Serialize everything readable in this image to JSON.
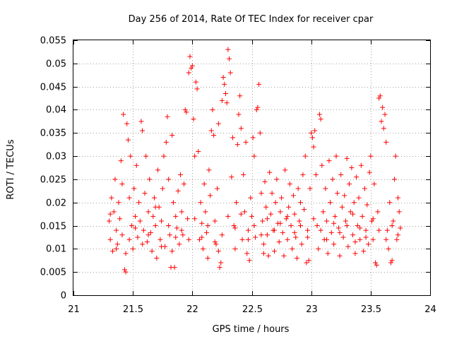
{
  "chart_data": {
    "type": "scatter",
    "title": "Day 256 of 2014, Rate Of TEC Index for receiver cpar",
    "xlabel": "GPS time / hours",
    "ylabel": "ROTI / TECUs",
    "xlim": [
      21,
      24
    ],
    "ylim": [
      0,
      0.055
    ],
    "grid": true,
    "marker": "plus",
    "color": "#ff0000",
    "x_ticks": [
      {
        "value": 21,
        "label": "21"
      },
      {
        "value": 21.5,
        "label": "21.5"
      },
      {
        "value": 22,
        "label": "22"
      },
      {
        "value": 22.5,
        "label": "22.5"
      },
      {
        "value": 23,
        "label": "23"
      },
      {
        "value": 23.5,
        "label": "23.5"
      },
      {
        "value": 24,
        "label": "24"
      }
    ],
    "y_ticks": [
      {
        "value": 0,
        "label": "0"
      },
      {
        "value": 0.005,
        "label": "0.005"
      },
      {
        "value": 0.01,
        "label": "0.01"
      },
      {
        "value": 0.015,
        "label": "0.015"
      },
      {
        "value": 0.02,
        "label": "0.02"
      },
      {
        "value": 0.025,
        "label": "0.025"
      },
      {
        "value": 0.03,
        "label": "0.03"
      },
      {
        "value": 0.035,
        "label": "0.035"
      },
      {
        "value": 0.04,
        "label": "0.04"
      },
      {
        "value": 0.045,
        "label": "0.045"
      },
      {
        "value": 0.05,
        "label": "0.05"
      },
      {
        "value": 0.055,
        "label": "0.055"
      }
    ],
    "points": [
      [
        21.3,
        0.016
      ],
      [
        21.31,
        0.012
      ],
      [
        21.32,
        0.021
      ],
      [
        21.33,
        0.0095
      ],
      [
        21.34,
        0.018
      ],
      [
        21.35,
        0.025
      ],
      [
        21.36,
        0.014
      ],
      [
        21.37,
        0.011
      ],
      [
        21.38,
        0.02
      ],
      [
        21.39,
        0.0165
      ],
      [
        21.4,
        0.029
      ],
      [
        21.41,
        0.013
      ],
      [
        21.42,
        0.039
      ],
      [
        21.43,
        0.0055
      ],
      [
        21.44,
        0.005
      ],
      [
        21.45,
        0.037
      ],
      [
        21.46,
        0.0335
      ],
      [
        21.47,
        0.021
      ],
      [
        21.48,
        0.03
      ],
      [
        21.49,
        0.015
      ],
      [
        21.5,
        0.01
      ],
      [
        21.51,
        0.023
      ],
      [
        21.52,
        0.017
      ],
      [
        21.53,
        0.028
      ],
      [
        21.54,
        0.0125
      ],
      [
        21.55,
        0.02
      ],
      [
        21.56,
        0.016
      ],
      [
        21.57,
        0.0375
      ],
      [
        21.58,
        0.0355
      ],
      [
        21.59,
        0.014
      ],
      [
        21.6,
        0.022
      ],
      [
        21.61,
        0.03
      ],
      [
        21.62,
        0.0115
      ],
      [
        21.63,
        0.018
      ],
      [
        21.64,
        0.025
      ],
      [
        21.65,
        0.0135
      ],
      [
        21.66,
        0.0095
      ],
      [
        21.67,
        0.017
      ],
      [
        21.68,
        0.021
      ],
      [
        21.69,
        0.015
      ],
      [
        21.7,
        0.008
      ],
      [
        21.71,
        0.027
      ],
      [
        21.72,
        0.019
      ],
      [
        21.73,
        0.012
      ],
      [
        21.74,
        0.016
      ],
      [
        21.75,
        0.023
      ],
      [
        21.76,
        0.03
      ],
      [
        21.77,
        0.0105
      ],
      [
        21.78,
        0.033
      ],
      [
        21.79,
        0.0385
      ],
      [
        21.8,
        0.025
      ],
      [
        21.81,
        0.013
      ],
      [
        21.82,
        0.006
      ],
      [
        21.83,
        0.0345
      ],
      [
        21.84,
        0.02
      ],
      [
        21.85,
        0.006
      ],
      [
        21.86,
        0.017
      ],
      [
        21.87,
        0.0145
      ],
      [
        21.88,
        0.0225
      ],
      [
        21.89,
        0.011
      ],
      [
        21.9,
        0.026
      ],
      [
        21.91,
        0.018
      ],
      [
        21.92,
        0.013
      ],
      [
        21.93,
        0.024
      ],
      [
        21.94,
        0.04
      ],
      [
        21.95,
        0.0395
      ],
      [
        21.96,
        0.0165
      ],
      [
        21.97,
        0.048
      ],
      [
        21.98,
        0.0515
      ],
      [
        21.99,
        0.049
      ],
      [
        22.0,
        0.0495
      ],
      [
        22.01,
        0.038
      ],
      [
        22.02,
        0.03
      ],
      [
        22.03,
        0.046
      ],
      [
        22.04,
        0.0445
      ],
      [
        22.05,
        0.031
      ],
      [
        22.06,
        0.012
      ],
      [
        22.07,
        0.02
      ],
      [
        22.08,
        0.0155
      ],
      [
        22.09,
        0.01
      ],
      [
        22.1,
        0.024
      ],
      [
        22.11,
        0.018
      ],
      [
        22.12,
        0.0135
      ],
      [
        22.13,
        0.008
      ],
      [
        22.14,
        0.027
      ],
      [
        22.15,
        0.0215
      ],
      [
        22.16,
        0.0355
      ],
      [
        22.17,
        0.04
      ],
      [
        22.18,
        0.0345
      ],
      [
        22.19,
        0.016
      ],
      [
        22.2,
        0.011
      ],
      [
        22.21,
        0.023
      ],
      [
        22.22,
        0.037
      ],
      [
        22.23,
        0.006
      ],
      [
        22.24,
        0.007
      ],
      [
        22.25,
        0.042
      ],
      [
        22.26,
        0.047
      ],
      [
        22.27,
        0.0455
      ],
      [
        22.28,
        0.0435
      ],
      [
        22.29,
        0.0415
      ],
      [
        22.3,
        0.053
      ],
      [
        22.31,
        0.051
      ],
      [
        22.32,
        0.048
      ],
      [
        22.33,
        0.0255
      ],
      [
        22.34,
        0.034
      ],
      [
        22.35,
        0.015
      ],
      [
        22.36,
        0.01
      ],
      [
        22.37,
        0.02
      ],
      [
        22.38,
        0.0325
      ],
      [
        22.39,
        0.039
      ],
      [
        22.4,
        0.043
      ],
      [
        22.41,
        0.036
      ],
      [
        22.42,
        0.012
      ],
      [
        22.43,
        0.026
      ],
      [
        22.44,
        0.018
      ],
      [
        22.45,
        0.033
      ],
      [
        22.46,
        0.009
      ],
      [
        22.47,
        0.014
      ],
      [
        22.48,
        0.0075
      ],
      [
        22.49,
        0.021
      ],
      [
        22.5,
        0.017
      ],
      [
        22.51,
        0.034
      ],
      [
        22.52,
        0.03
      ],
      [
        22.53,
        0.0125
      ],
      [
        22.54,
        0.04
      ],
      [
        22.55,
        0.0405
      ],
      [
        22.56,
        0.0455
      ],
      [
        22.57,
        0.035
      ],
      [
        22.58,
        0.022
      ],
      [
        22.59,
        0.016
      ],
      [
        22.6,
        0.011
      ],
      [
        22.61,
        0.0245
      ],
      [
        22.62,
        0.019
      ],
      [
        22.63,
        0.013
      ],
      [
        22.64,
        0.0085
      ],
      [
        22.65,
        0.0265
      ],
      [
        22.66,
        0.0175
      ],
      [
        22.67,
        0.022
      ],
      [
        22.68,
        0.014
      ],
      [
        22.69,
        0.0095
      ],
      [
        22.7,
        0.02
      ],
      [
        22.71,
        0.025
      ],
      [
        22.72,
        0.0155
      ],
      [
        22.73,
        0.0115
      ],
      [
        22.74,
        0.018
      ],
      [
        22.75,
        0.021
      ],
      [
        22.76,
        0.0135
      ],
      [
        22.77,
        0.0085
      ],
      [
        22.78,
        0.027
      ],
      [
        22.79,
        0.0165
      ],
      [
        22.8,
        0.012
      ],
      [
        22.81,
        0.019
      ],
      [
        22.82,
        0.024
      ],
      [
        22.83,
        0.015
      ],
      [
        22.84,
        0.01
      ],
      [
        22.85,
        0.0215
      ],
      [
        22.86,
        0.0175
      ],
      [
        22.87,
        0.0125
      ],
      [
        22.88,
        0.008
      ],
      [
        22.89,
        0.023
      ],
      [
        22.9,
        0.016
      ],
      [
        22.91,
        0.02
      ],
      [
        22.92,
        0.011
      ],
      [
        22.93,
        0.026
      ],
      [
        22.94,
        0.0185
      ],
      [
        22.95,
        0.03
      ],
      [
        22.96,
        0.007
      ],
      [
        22.97,
        0.014
      ],
      [
        22.98,
        0.0075
      ],
      [
        22.99,
        0.023
      ],
      [
        23.0,
        0.035
      ],
      [
        23.01,
        0.034
      ],
      [
        23.02,
        0.032
      ],
      [
        23.03,
        0.0355
      ],
      [
        23.04,
        0.026
      ],
      [
        23.05,
        0.015
      ],
      [
        23.06,
        0.01
      ],
      [
        23.07,
        0.039
      ],
      [
        23.08,
        0.038
      ],
      [
        23.09,
        0.028
      ],
      [
        23.1,
        0.018
      ],
      [
        23.11,
        0.012
      ],
      [
        23.12,
        0.023
      ],
      [
        23.13,
        0.016
      ],
      [
        23.14,
        0.009
      ],
      [
        23.15,
        0.029
      ],
      [
        23.16,
        0.02
      ],
      [
        23.17,
        0.0135
      ],
      [
        23.18,
        0.025
      ],
      [
        23.19,
        0.011
      ],
      [
        23.2,
        0.017
      ],
      [
        23.21,
        0.03
      ],
      [
        23.22,
        0.022
      ],
      [
        23.23,
        0.0145
      ],
      [
        23.24,
        0.0085
      ],
      [
        23.25,
        0.026
      ],
      [
        23.26,
        0.019
      ],
      [
        23.27,
        0.0125
      ],
      [
        23.28,
        0.0215
      ],
      [
        23.29,
        0.016
      ],
      [
        23.3,
        0.0295
      ],
      [
        23.31,
        0.0105
      ],
      [
        23.32,
        0.024
      ],
      [
        23.33,
        0.018
      ],
      [
        23.34,
        0.0275
      ],
      [
        23.35,
        0.013
      ],
      [
        23.36,
        0.02
      ],
      [
        23.37,
        0.009
      ],
      [
        23.38,
        0.0255
      ],
      [
        23.39,
        0.015
      ],
      [
        23.4,
        0.021
      ],
      [
        23.41,
        0.012
      ],
      [
        23.42,
        0.028
      ],
      [
        23.43,
        0.017
      ],
      [
        23.44,
        0.0095
      ],
      [
        23.45,
        0.023
      ],
      [
        23.46,
        0.014
      ],
      [
        23.47,
        0.0195
      ],
      [
        23.48,
        0.011
      ],
      [
        23.49,
        0.0265
      ],
      [
        23.5,
        0.03
      ],
      [
        23.51,
        0.016
      ],
      [
        23.52,
        0.012
      ],
      [
        23.53,
        0.024
      ],
      [
        23.54,
        0.007
      ],
      [
        23.55,
        0.0065
      ],
      [
        23.56,
        0.018
      ],
      [
        23.57,
        0.0425
      ],
      [
        23.58,
        0.043
      ],
      [
        23.59,
        0.0375
      ],
      [
        23.6,
        0.0405
      ],
      [
        23.61,
        0.036
      ],
      [
        23.62,
        0.039
      ],
      [
        23.63,
        0.033
      ],
      [
        23.64,
        0.014
      ],
      [
        23.65,
        0.01
      ],
      [
        23.66,
        0.02
      ],
      [
        23.67,
        0.007
      ],
      [
        23.68,
        0.0075
      ],
      [
        23.69,
        0.016
      ],
      [
        23.7,
        0.025
      ],
      [
        23.71,
        0.03
      ],
      [
        23.72,
        0.012
      ],
      [
        23.73,
        0.021
      ],
      [
        23.74,
        0.018
      ],
      [
        23.75,
        0.0145
      ],
      [
        21.31,
        0.0175
      ],
      [
        21.36,
        0.01
      ],
      [
        21.41,
        0.024
      ],
      [
        21.47,
        0.012
      ],
      [
        21.52,
        0.0145
      ],
      [
        21.58,
        0.011
      ],
      [
        21.63,
        0.013
      ],
      [
        21.69,
        0.019
      ],
      [
        21.74,
        0.0105
      ],
      [
        21.8,
        0.015
      ],
      [
        21.86,
        0.0125
      ],
      [
        21.91,
        0.014
      ],
      [
        21.97,
        0.012
      ],
      [
        22.02,
        0.0165
      ],
      [
        22.08,
        0.0125
      ],
      [
        22.13,
        0.015
      ],
      [
        22.19,
        0.0115
      ],
      [
        22.25,
        0.013
      ],
      [
        22.3,
        0.017
      ],
      [
        22.36,
        0.0145
      ],
      [
        22.41,
        0.0175
      ],
      [
        22.47,
        0.012
      ],
      [
        22.52,
        0.015
      ],
      [
        22.58,
        0.013
      ],
      [
        22.63,
        0.0165
      ],
      [
        22.69,
        0.014
      ],
      [
        22.74,
        0.0155
      ],
      [
        22.8,
        0.017
      ],
      [
        22.86,
        0.0135
      ],
      [
        22.91,
        0.015
      ],
      [
        22.97,
        0.0125
      ],
      [
        23.02,
        0.0165
      ],
      [
        23.08,
        0.014
      ],
      [
        23.13,
        0.012
      ],
      [
        23.19,
        0.0155
      ],
      [
        23.24,
        0.0135
      ],
      [
        23.3,
        0.015
      ],
      [
        23.35,
        0.0175
      ],
      [
        23.41,
        0.0145
      ],
      [
        23.46,
        0.0125
      ],
      [
        23.52,
        0.0165
      ],
      [
        23.57,
        0.014
      ],
      [
        23.63,
        0.012
      ],
      [
        23.68,
        0.015
      ],
      [
        23.73,
        0.013
      ],
      [
        21.44,
        0.009
      ],
      [
        21.83,
        0.0095
      ],
      [
        22.22,
        0.0095
      ],
      [
        22.6,
        0.009
      ],
      [
        23.37,
        0.0115
      ]
    ]
  }
}
